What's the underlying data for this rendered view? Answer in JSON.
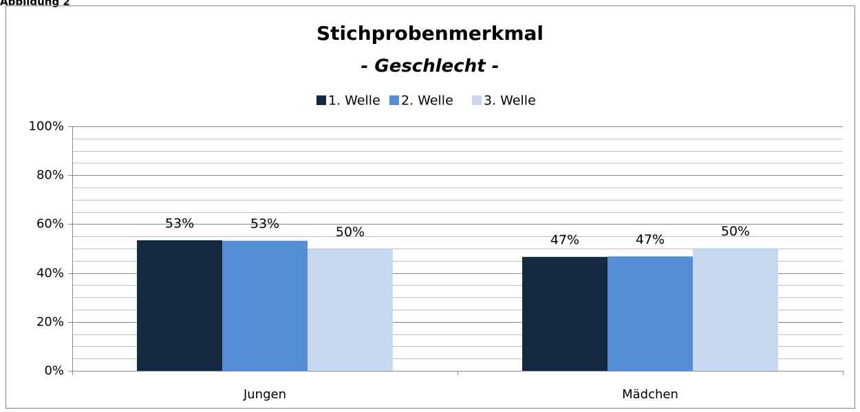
{
  "caption": "Abbildung 2",
  "chart_data": {
    "type": "bar",
    "title": "Stichprobenmerkmal",
    "subtitle": "- Geschlecht -",
    "categories": [
      "Jungen",
      "Mädchen"
    ],
    "series": [
      {
        "name": "1. Welle",
        "color": "#142840",
        "values": [
          53.4,
          46.6
        ],
        "value_labels": [
          "53%",
          "47%"
        ]
      },
      {
        "name": "2. Welle",
        "color": "#558ed5",
        "values": [
          53.2,
          46.8
        ],
        "value_labels": [
          "53%",
          "47%"
        ]
      },
      {
        "name": "3. Welle",
        "color": "#c6d9f1",
        "values": [
          49.8,
          50.2
        ],
        "value_labels": [
          "50%",
          "50%"
        ]
      }
    ],
    "ylim": [
      0,
      100
    ],
    "yticks": [
      {
        "value": 0,
        "label": "0%"
      },
      {
        "value": 20,
        "label": "20%"
      },
      {
        "value": 40,
        "label": "40%"
      },
      {
        "value": 60,
        "label": "60%"
      },
      {
        "value": 80,
        "label": "80%"
      },
      {
        "value": 100,
        "label": "100%"
      }
    ],
    "minor_yticks": [
      5,
      10,
      15,
      25,
      30,
      35,
      45,
      50,
      55,
      65,
      70,
      75,
      85,
      90,
      95
    ],
    "grid": true,
    "legend": "top"
  }
}
